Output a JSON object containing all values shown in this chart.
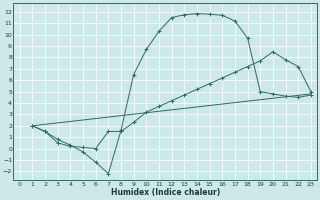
{
  "background_color": "#cce8e8",
  "grid_color": "#b8d8d8",
  "line_color": "#2a6e60",
  "xlabel": "Humidex (Indice chaleur)",
  "ylim": [
    -2.8,
    12.8
  ],
  "xlim": [
    -0.5,
    23.5
  ],
  "yticks": [
    -2,
    -1,
    0,
    1,
    2,
    3,
    4,
    5,
    6,
    7,
    8,
    9,
    10,
    11,
    12
  ],
  "xticks": [
    0,
    1,
    2,
    3,
    4,
    5,
    6,
    7,
    8,
    9,
    10,
    11,
    12,
    13,
    14,
    15,
    16,
    17,
    18,
    19,
    20,
    21,
    22,
    23
  ],
  "curve1_x": [
    1,
    2,
    3,
    4,
    5,
    6,
    7,
    8,
    9,
    10,
    11,
    12,
    13,
    14,
    15,
    16,
    17,
    18,
    19,
    20,
    21,
    22,
    23
  ],
  "curve1_y": [
    2,
    1.5,
    0.8,
    0.3,
    -0.3,
    -1.2,
    -2.2,
    1.6,
    6.5,
    8.7,
    10.3,
    11.5,
    11.75,
    11.85,
    11.8,
    11.7,
    11.2,
    9.7,
    5.0,
    4.8,
    4.6,
    4.5,
    4.7
  ],
  "curve2_x": [
    1,
    2,
    3,
    4,
    5,
    6,
    7,
    8,
    9,
    10,
    11,
    12,
    13,
    14,
    15,
    16,
    17,
    18,
    19,
    20,
    21,
    22,
    23
  ],
  "curve2_y": [
    2,
    1.5,
    0.5,
    0.2,
    0.1,
    0.0,
    1.5,
    1.5,
    2.3,
    3.2,
    3.7,
    4.2,
    4.7,
    5.2,
    5.7,
    6.2,
    6.7,
    7.2,
    7.7,
    8.5,
    7.8,
    7.2,
    5.0
  ],
  "line3_x": [
    1,
    23
  ],
  "line3_y": [
    2,
    4.8
  ],
  "title_color": "#1a3a3a",
  "tick_fontsize": 4.5,
  "xlabel_fontsize": 5.5
}
